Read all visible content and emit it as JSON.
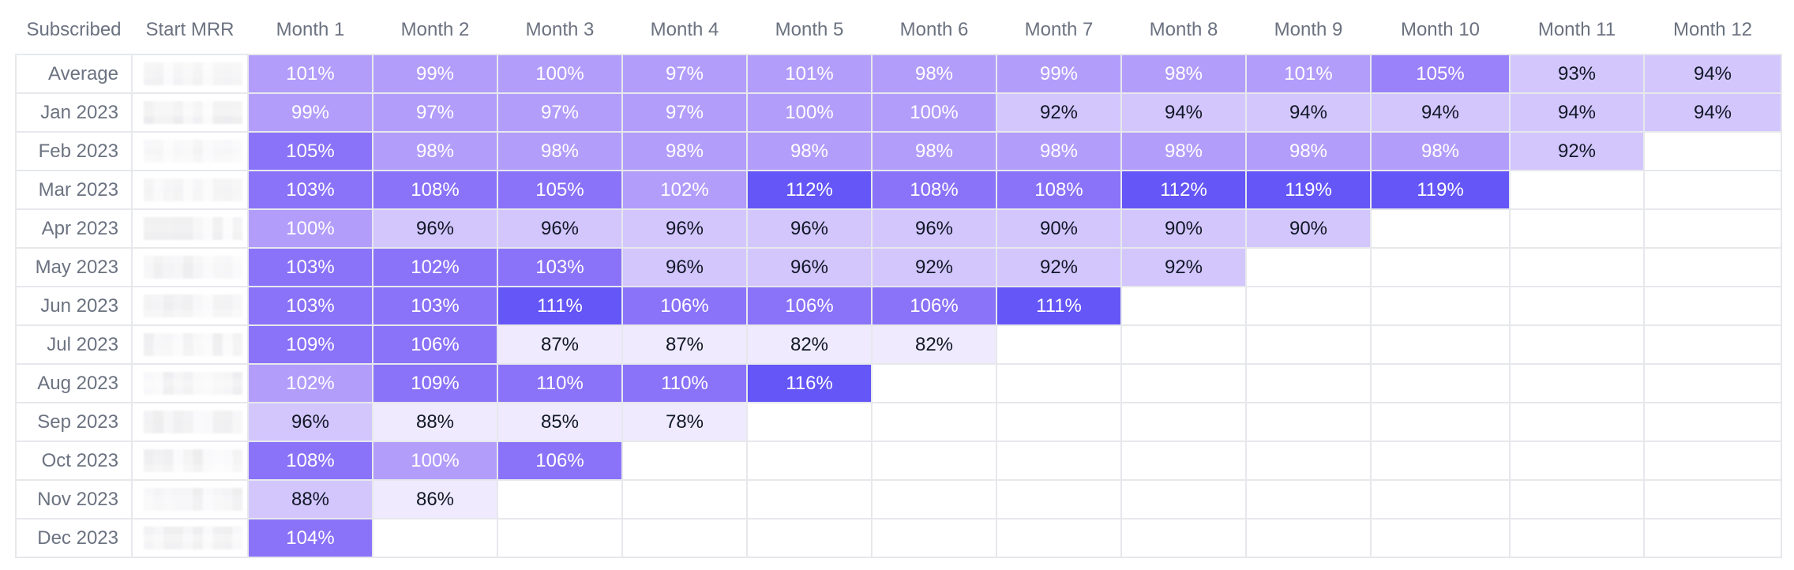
{
  "table": {
    "headers": [
      "Subscribed",
      "Start MRR",
      "Month 1",
      "Month 2",
      "Month 3",
      "Month 4",
      "Month 5",
      "Month 6",
      "Month 7",
      "Month 8",
      "Month 9",
      "Month 10",
      "Month 11",
      "Month 12"
    ],
    "rows": [
      {
        "label": "Average",
        "values": [
          "101%",
          "99%",
          "100%",
          "97%",
          "101%",
          "98%",
          "99%",
          "98%",
          "101%",
          "105%",
          "93%",
          "94%"
        ]
      },
      {
        "label": "Jan 2023",
        "values": [
          "99%",
          "97%",
          "97%",
          "97%",
          "100%",
          "100%",
          "92%",
          "94%",
          "94%",
          "94%",
          "94%",
          "94%"
        ]
      },
      {
        "label": "Feb 2023",
        "values": [
          "105%",
          "98%",
          "98%",
          "98%",
          "98%",
          "98%",
          "98%",
          "98%",
          "98%",
          "98%",
          "92%"
        ]
      },
      {
        "label": "Mar 2023",
        "values": [
          "103%",
          "108%",
          "105%",
          "102%",
          "112%",
          "108%",
          "108%",
          "112%",
          "119%",
          "119%"
        ]
      },
      {
        "label": "Apr 2023",
        "values": [
          "100%",
          "96%",
          "96%",
          "96%",
          "96%",
          "96%",
          "90%",
          "90%",
          "90%"
        ]
      },
      {
        "label": "May 2023",
        "values": [
          "103%",
          "102%",
          "103%",
          "96%",
          "96%",
          "92%",
          "92%",
          "92%"
        ]
      },
      {
        "label": "Jun 2023",
        "values": [
          "103%",
          "103%",
          "111%",
          "106%",
          "106%",
          "106%",
          "111%"
        ]
      },
      {
        "label": "Jul 2023",
        "values": [
          "109%",
          "106%",
          "87%",
          "87%",
          "82%",
          "82%"
        ]
      },
      {
        "label": "Aug 2023",
        "values": [
          "102%",
          "109%",
          "110%",
          "110%",
          "116%"
        ]
      },
      {
        "label": "Sep 2023",
        "values": [
          "96%",
          "88%",
          "85%",
          "78%"
        ]
      },
      {
        "label": "Oct 2023",
        "values": [
          "108%",
          "100%",
          "106%"
        ]
      },
      {
        "label": "Nov 2023",
        "values": [
          "88%",
          "86%"
        ]
      },
      {
        "label": "Dec 2023",
        "values": [
          "104%"
        ]
      }
    ]
  },
  "colors": {
    "level_1": "#efeafe",
    "level_2": "#d3c6fd",
    "level_3": "#b39dfb",
    "level_4": "#9a83fa",
    "level_5": "#8a73f9",
    "level_6": "#6556f7",
    "header_text": "#6b7280",
    "grid_line": "#e6e8ec"
  },
  "cell_shades": [
    [
      3,
      3,
      3,
      3,
      3,
      3,
      3,
      3,
      3,
      4,
      2,
      2
    ],
    [
      3,
      3,
      3,
      3,
      3,
      3,
      2,
      2,
      2,
      2,
      2,
      2
    ],
    [
      5,
      3,
      3,
      3,
      3,
      3,
      3,
      3,
      3,
      3,
      2
    ],
    [
      5,
      5,
      5,
      3,
      6,
      5,
      5,
      6,
      6,
      6
    ],
    [
      3,
      2,
      2,
      2,
      2,
      2,
      2,
      2,
      2
    ],
    [
      5,
      5,
      5,
      2,
      2,
      2,
      2,
      2
    ],
    [
      5,
      5,
      6,
      5,
      5,
      5,
      6
    ],
    [
      5,
      5,
      1,
      1,
      1,
      1
    ],
    [
      3,
      5,
      5,
      5,
      6
    ],
    [
      2,
      1,
      1,
      1
    ],
    [
      5,
      3,
      5
    ],
    [
      2,
      1
    ],
    [
      5
    ]
  ]
}
